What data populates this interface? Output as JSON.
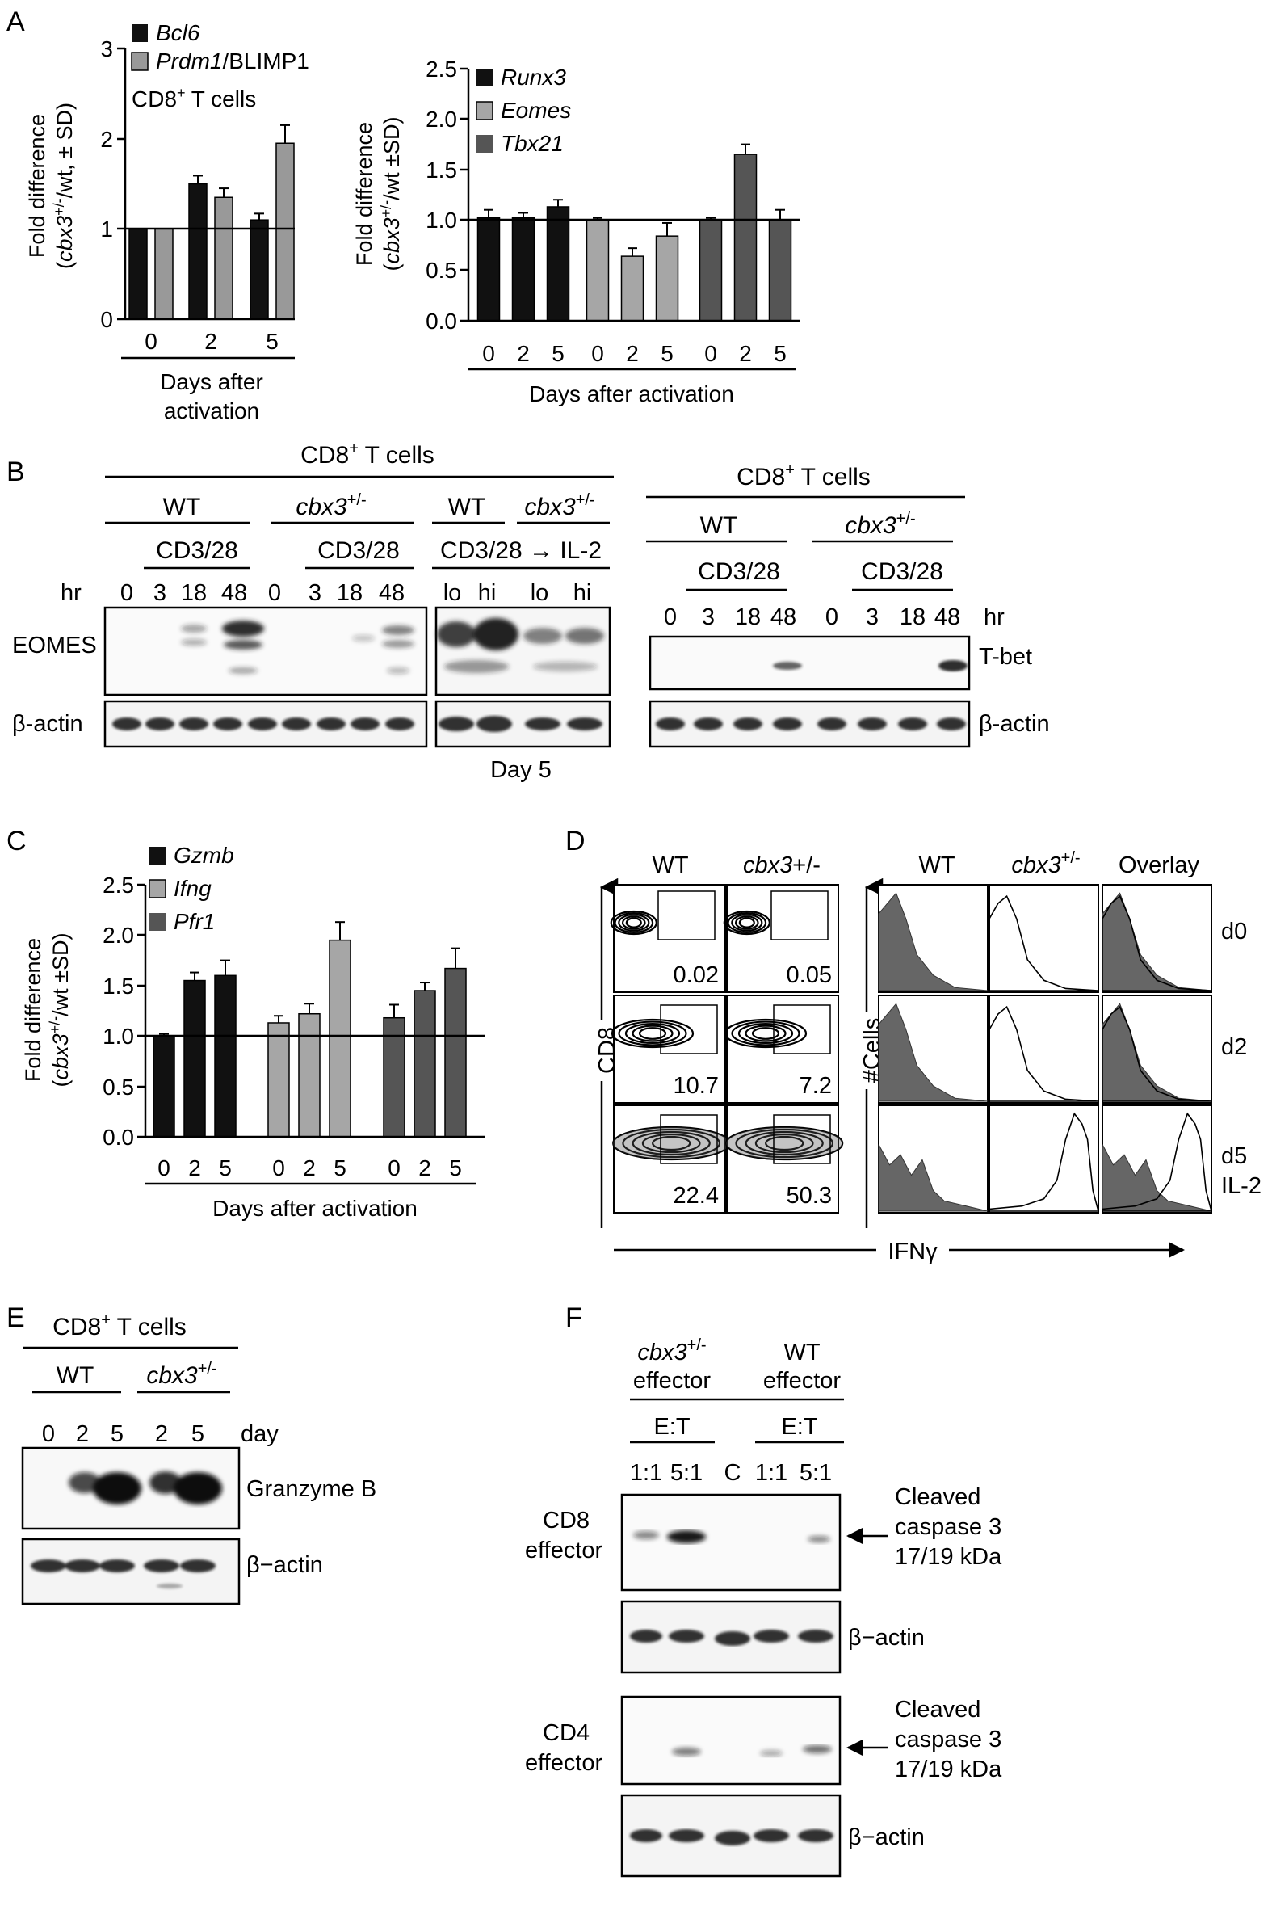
{
  "panels": {
    "A": {
      "letter": "A",
      "chart_left": {
        "type": "bar",
        "ylabel_line1": "Fold difference",
        "ylabel_line2": "(cbx3+/-/wt, ± SD)",
        "yticks": [
          "0",
          "1",
          "2",
          "3"
        ],
        "ylim": [
          0,
          3
        ],
        "legend": [
          {
            "name": "Bcl6",
            "color": "#111111"
          },
          {
            "name": "Prdm1/BLIMP1",
            "color": "#999999"
          }
        ],
        "legend_note": "CD8+ T cells",
        "categories": [
          "0",
          "2",
          "5"
        ],
        "series": [
          {
            "name": "Bcl6",
            "values": [
              1.0,
              1.5,
              1.1
            ],
            "err": [
              0,
              0.09,
              0.07
            ]
          },
          {
            "name": "Prdm1/BLIMP1",
            "values": [
              1.0,
              1.35,
              1.95
            ],
            "err": [
              0,
              0.1,
              0.2
            ]
          }
        ],
        "xlabel_line1": "Days after",
        "xlabel_line2": "activation"
      },
      "chart_right": {
        "type": "bar",
        "ylabel_line1": "Fold difference",
        "ylabel_line2": "(cbx3+/-/wt ±SD)",
        "yticks": [
          "0.0",
          "0.5",
          "1.0",
          "1.5",
          "2.0",
          "2.5"
        ],
        "ylim": [
          0,
          2.5
        ],
        "legend": [
          {
            "name": "Runx3",
            "color": "#111111"
          },
          {
            "name": "Eomes",
            "color": "#a6a6a6"
          },
          {
            "name": "Tbx21",
            "color": "#555555"
          }
        ],
        "categories": [
          "0",
          "2",
          "5"
        ],
        "series": [
          {
            "name": "Runx3",
            "values": [
              1.02,
              1.02,
              1.13
            ],
            "err": [
              0.08,
              0.05,
              0.07
            ]
          },
          {
            "name": "Eomes",
            "values": [
              1.0,
              0.64,
              0.84
            ],
            "err": [
              0.02,
              0.08,
              0.13
            ]
          },
          {
            "name": "Tbx21",
            "values": [
              1.0,
              1.65,
              1.0
            ],
            "err": [
              0.02,
              0.1,
              0.1
            ]
          }
        ],
        "xlabel": "Days after activation"
      }
    },
    "B": {
      "letter": "B",
      "title": "CD8+ T cells",
      "wt": "WT",
      "ko": "cbx3+/-",
      "stim": "CD3/28",
      "il2_line": "CD3/28 → IL-2",
      "hr": "hr",
      "hours": [
        "0",
        "3",
        "18",
        "48"
      ],
      "lo": "lo",
      "hi": "hi",
      "eomes": "EOMES",
      "tbet": "T-bet",
      "actin": "β-actin",
      "day5": "Day 5"
    },
    "C": {
      "letter": "C",
      "chart": {
        "type": "bar",
        "ylabel_line1": "Fold difference",
        "ylabel_line2": "(cbx3+/-/wt ±SD)",
        "yticks": [
          "0.0",
          "0.5",
          "1.0",
          "1.5",
          "2.0",
          "2.5"
        ],
        "ylim": [
          0,
          2.5
        ],
        "legend": [
          {
            "name": "Gzmb",
            "color": "#111111"
          },
          {
            "name": "Ifng",
            "color": "#a6a6a6"
          },
          {
            "name": "Pfr1",
            "color": "#555555"
          }
        ],
        "categories": [
          "0",
          "2",
          "5"
        ],
        "series": [
          {
            "name": "Gzmb",
            "values": [
              1.0,
              1.55,
              1.6
            ],
            "err": [
              0.02,
              0.08,
              0.15
            ]
          },
          {
            "name": "Ifng",
            "values": [
              1.13,
              1.22,
              1.95
            ],
            "err": [
              0.07,
              0.1,
              0.18
            ]
          },
          {
            "name": "Pfr1",
            "values": [
              1.18,
              1.45,
              1.67
            ],
            "err": [
              0.13,
              0.08,
              0.2
            ]
          }
        ],
        "xlabel": "Days after activation"
      }
    },
    "D": {
      "letter": "D",
      "wt": "WT",
      "ko": "cbx3+/-",
      "overlay": "Overlay",
      "yaxis_flow": "CD8",
      "yaxis_hist": "#Cells",
      "xaxis": "IFNγ",
      "days": [
        "d0",
        "d2",
        "d5"
      ],
      "day_extra": "IL-2",
      "percentages": [
        [
          "0.02",
          "0.05"
        ],
        [
          "10.7",
          "7.2"
        ],
        [
          "22.4",
          "50.3"
        ]
      ]
    },
    "E": {
      "letter": "E",
      "title": "CD8+ T cells",
      "wt": "WT",
      "ko": "cbx3+/-",
      "days": [
        "0",
        "2",
        "5"
      ],
      "day": "day",
      "granzyme": "Granzyme B",
      "actin": "β−actin"
    },
    "F": {
      "letter": "F",
      "ko_effector_1": "cbx3+/-",
      "ko_effector_2": "effector",
      "wt_effector_1": "WT",
      "wt_effector_2": "effector",
      "et": "E:T",
      "ratios": [
        "1:1",
        "5:1",
        "C",
        "1:1",
        "5:1"
      ],
      "cd8_1": "CD8",
      "cd8_2": "effector",
      "cd4_1": "CD4",
      "cd4_2": "effector",
      "cleaved_1": "Cleaved",
      "cleaved_2": "caspase 3",
      "cleaved_3": "17/19 kDa",
      "actin": "β−actin"
    }
  }
}
